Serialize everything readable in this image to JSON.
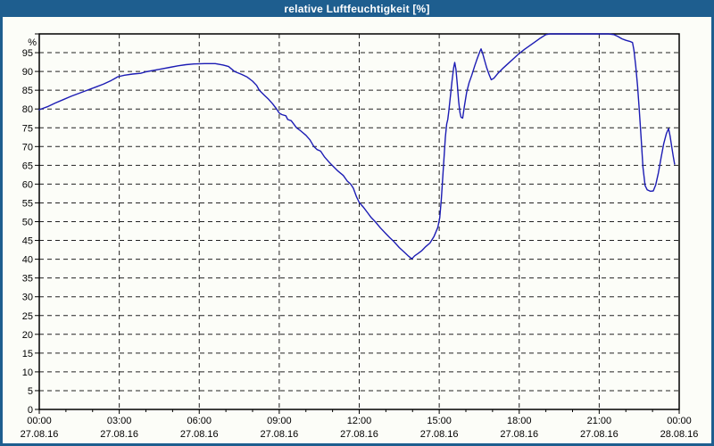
{
  "window": {
    "title": "relative Luftfeuchtigkeit [%]"
  },
  "colors": {
    "titlebar_bg": "#1e5e8f",
    "title_text": "#ffffff",
    "window_border": "#1e5e8f",
    "chart_bg": "#fcfdf8",
    "frame": "#000000",
    "grid": "#222222",
    "tick_text": "#000000",
    "line": "#1c1cb4"
  },
  "chart_data": {
    "type": "line",
    "title": "relative Luftfeuchtigkeit [%]",
    "ylabel": "%",
    "y_unit_label": "%",
    "ylim": [
      0,
      100
    ],
    "y_tick_labels": [
      0,
      5,
      10,
      15,
      20,
      25,
      30,
      35,
      40,
      45,
      50,
      55,
      60,
      65,
      70,
      75,
      80,
      85,
      90,
      95
    ],
    "y_tick_marks": [
      0,
      5,
      10,
      15,
      20,
      25,
      30,
      35,
      40,
      45,
      50,
      55,
      60,
      65,
      70,
      75,
      80,
      85,
      90,
      95,
      100
    ],
    "x_range_hours": [
      0,
      24
    ],
    "x_minor_tick_every_hours": 1,
    "x_major_ticks": [
      {
        "hour": 0,
        "time": "00:00",
        "date": "27.08.16"
      },
      {
        "hour": 3,
        "time": "03:00",
        "date": "27.08.16"
      },
      {
        "hour": 6,
        "time": "06:00",
        "date": "27.08.16"
      },
      {
        "hour": 9,
        "time": "09:00",
        "date": "27.08.16"
      },
      {
        "hour": 12,
        "time": "12:00",
        "date": "27.08.16"
      },
      {
        "hour": 15,
        "time": "15:00",
        "date": "27.08.16"
      },
      {
        "hour": 18,
        "time": "18:00",
        "date": "27.08.16"
      },
      {
        "hour": 21,
        "time": "21:00",
        "date": "27.08.16"
      },
      {
        "hour": 24,
        "time": "00:00",
        "date": "28.08.16"
      }
    ],
    "grid": {
      "style": "dashed",
      "horizontal_at": [
        5,
        10,
        15,
        20,
        25,
        30,
        35,
        40,
        45,
        50,
        55,
        60,
        65,
        70,
        75,
        80,
        85,
        90,
        95
      ],
      "vertical_at_hours": [
        3,
        6,
        9,
        12,
        15,
        18,
        21
      ]
    },
    "legend": "none",
    "series": [
      {
        "name": "relative Luftfeuchtigkeit",
        "unit": "%",
        "color": "#1c1cb4",
        "points": [
          [
            0.0,
            79.8
          ],
          [
            0.3,
            80.6
          ],
          [
            0.6,
            81.6
          ],
          [
            0.9,
            82.5
          ],
          [
            1.2,
            83.4
          ],
          [
            1.5,
            84.2
          ],
          [
            1.8,
            85.0
          ],
          [
            2.1,
            85.8
          ],
          [
            2.4,
            86.6
          ],
          [
            2.7,
            87.6
          ],
          [
            2.95,
            88.6
          ],
          [
            3.2,
            89.0
          ],
          [
            3.5,
            89.3
          ],
          [
            3.8,
            89.5
          ],
          [
            4.0,
            89.9
          ],
          [
            4.3,
            90.3
          ],
          [
            4.6,
            90.7
          ],
          [
            4.9,
            91.1
          ],
          [
            5.2,
            91.5
          ],
          [
            5.5,
            91.8
          ],
          [
            5.8,
            92.0
          ],
          [
            6.2,
            92.1
          ],
          [
            6.6,
            92.1
          ],
          [
            6.9,
            91.7
          ],
          [
            7.1,
            91.3
          ],
          [
            7.32,
            90.0
          ],
          [
            7.6,
            89.2
          ],
          [
            7.8,
            88.5
          ],
          [
            8.0,
            87.4
          ],
          [
            8.15,
            86.3
          ],
          [
            8.25,
            85.0
          ],
          [
            8.45,
            83.6
          ],
          [
            8.6,
            82.6
          ],
          [
            8.75,
            81.4
          ],
          [
            8.9,
            80.0
          ],
          [
            9.0,
            78.9
          ],
          [
            9.1,
            78.5
          ],
          [
            9.25,
            78.2
          ],
          [
            9.32,
            77.2
          ],
          [
            9.45,
            76.9
          ],
          [
            9.65,
            75.0
          ],
          [
            9.8,
            74.2
          ],
          [
            10.0,
            73.0
          ],
          [
            10.15,
            71.8
          ],
          [
            10.3,
            70.0
          ],
          [
            10.42,
            69.2
          ],
          [
            10.55,
            68.8
          ],
          [
            10.7,
            67.2
          ],
          [
            10.85,
            66.0
          ],
          [
            11.0,
            64.9
          ],
          [
            11.2,
            63.5
          ],
          [
            11.4,
            62.3
          ],
          [
            11.55,
            60.8
          ],
          [
            11.68,
            60.0
          ],
          [
            11.78,
            58.9
          ],
          [
            11.9,
            56.6
          ],
          [
            12.0,
            55.1
          ],
          [
            12.15,
            53.9
          ],
          [
            12.3,
            52.5
          ],
          [
            12.45,
            51.1
          ],
          [
            12.6,
            50.0
          ],
          [
            12.8,
            48.3
          ],
          [
            13.0,
            46.8
          ],
          [
            13.15,
            45.7
          ],
          [
            13.3,
            44.7
          ],
          [
            13.5,
            43.1
          ],
          [
            13.7,
            41.8
          ],
          [
            13.85,
            40.8
          ],
          [
            13.97,
            40.1
          ],
          [
            14.08,
            40.9
          ],
          [
            14.2,
            41.5
          ],
          [
            14.35,
            42.3
          ],
          [
            14.5,
            43.4
          ],
          [
            14.65,
            44.3
          ],
          [
            14.8,
            46.0
          ],
          [
            14.95,
            48.5
          ],
          [
            15.02,
            51.0
          ],
          [
            15.08,
            56.0
          ],
          [
            15.13,
            61.5
          ],
          [
            15.18,
            67.0
          ],
          [
            15.23,
            72.5
          ],
          [
            15.28,
            76.0
          ],
          [
            15.32,
            77.2
          ],
          [
            15.36,
            79.5
          ],
          [
            15.42,
            83.5
          ],
          [
            15.48,
            87.5
          ],
          [
            15.54,
            91.0
          ],
          [
            15.58,
            92.4
          ],
          [
            15.63,
            90.5
          ],
          [
            15.68,
            86.5
          ],
          [
            15.73,
            82.0
          ],
          [
            15.78,
            79.0
          ],
          [
            15.82,
            77.8
          ],
          [
            15.88,
            77.6
          ],
          [
            15.95,
            81.0
          ],
          [
            16.03,
            84.5
          ],
          [
            16.12,
            87.0
          ],
          [
            16.22,
            89.0
          ],
          [
            16.33,
            91.5
          ],
          [
            16.43,
            93.5
          ],
          [
            16.52,
            95.2
          ],
          [
            16.57,
            96.0
          ],
          [
            16.63,
            94.8
          ],
          [
            16.7,
            93.0
          ],
          [
            16.78,
            91.0
          ],
          [
            16.87,
            89.2
          ],
          [
            16.95,
            87.8
          ],
          [
            17.05,
            88.2
          ],
          [
            17.2,
            89.5
          ],
          [
            17.4,
            90.9
          ],
          [
            17.6,
            92.2
          ],
          [
            17.8,
            93.5
          ],
          [
            18.0,
            94.8
          ],
          [
            18.2,
            95.9
          ],
          [
            18.4,
            96.9
          ],
          [
            18.6,
            97.9
          ],
          [
            18.8,
            98.9
          ],
          [
            19.0,
            99.8
          ],
          [
            19.15,
            100.0
          ],
          [
            19.5,
            100.0
          ],
          [
            20.0,
            100.0
          ],
          [
            20.5,
            100.0
          ],
          [
            21.0,
            100.0
          ],
          [
            21.35,
            100.0
          ],
          [
            21.55,
            99.8
          ],
          [
            21.7,
            99.3
          ],
          [
            21.85,
            98.7
          ],
          [
            22.0,
            98.3
          ],
          [
            22.15,
            98.0
          ],
          [
            22.25,
            97.7
          ],
          [
            22.3,
            95.8
          ],
          [
            22.37,
            91.5
          ],
          [
            22.44,
            86.0
          ],
          [
            22.5,
            80.0
          ],
          [
            22.57,
            72.5
          ],
          [
            22.64,
            64.5
          ],
          [
            22.72,
            59.6
          ],
          [
            22.8,
            58.5
          ],
          [
            22.92,
            58.1
          ],
          [
            23.03,
            58.2
          ],
          [
            23.12,
            59.8
          ],
          [
            23.22,
            63.0
          ],
          [
            23.32,
            67.0
          ],
          [
            23.42,
            70.8
          ],
          [
            23.52,
            73.5
          ],
          [
            23.6,
            74.8
          ],
          [
            23.66,
            72.8
          ],
          [
            23.72,
            70.0
          ],
          [
            23.78,
            67.3
          ],
          [
            23.83,
            65.3
          ]
        ]
      }
    ]
  }
}
